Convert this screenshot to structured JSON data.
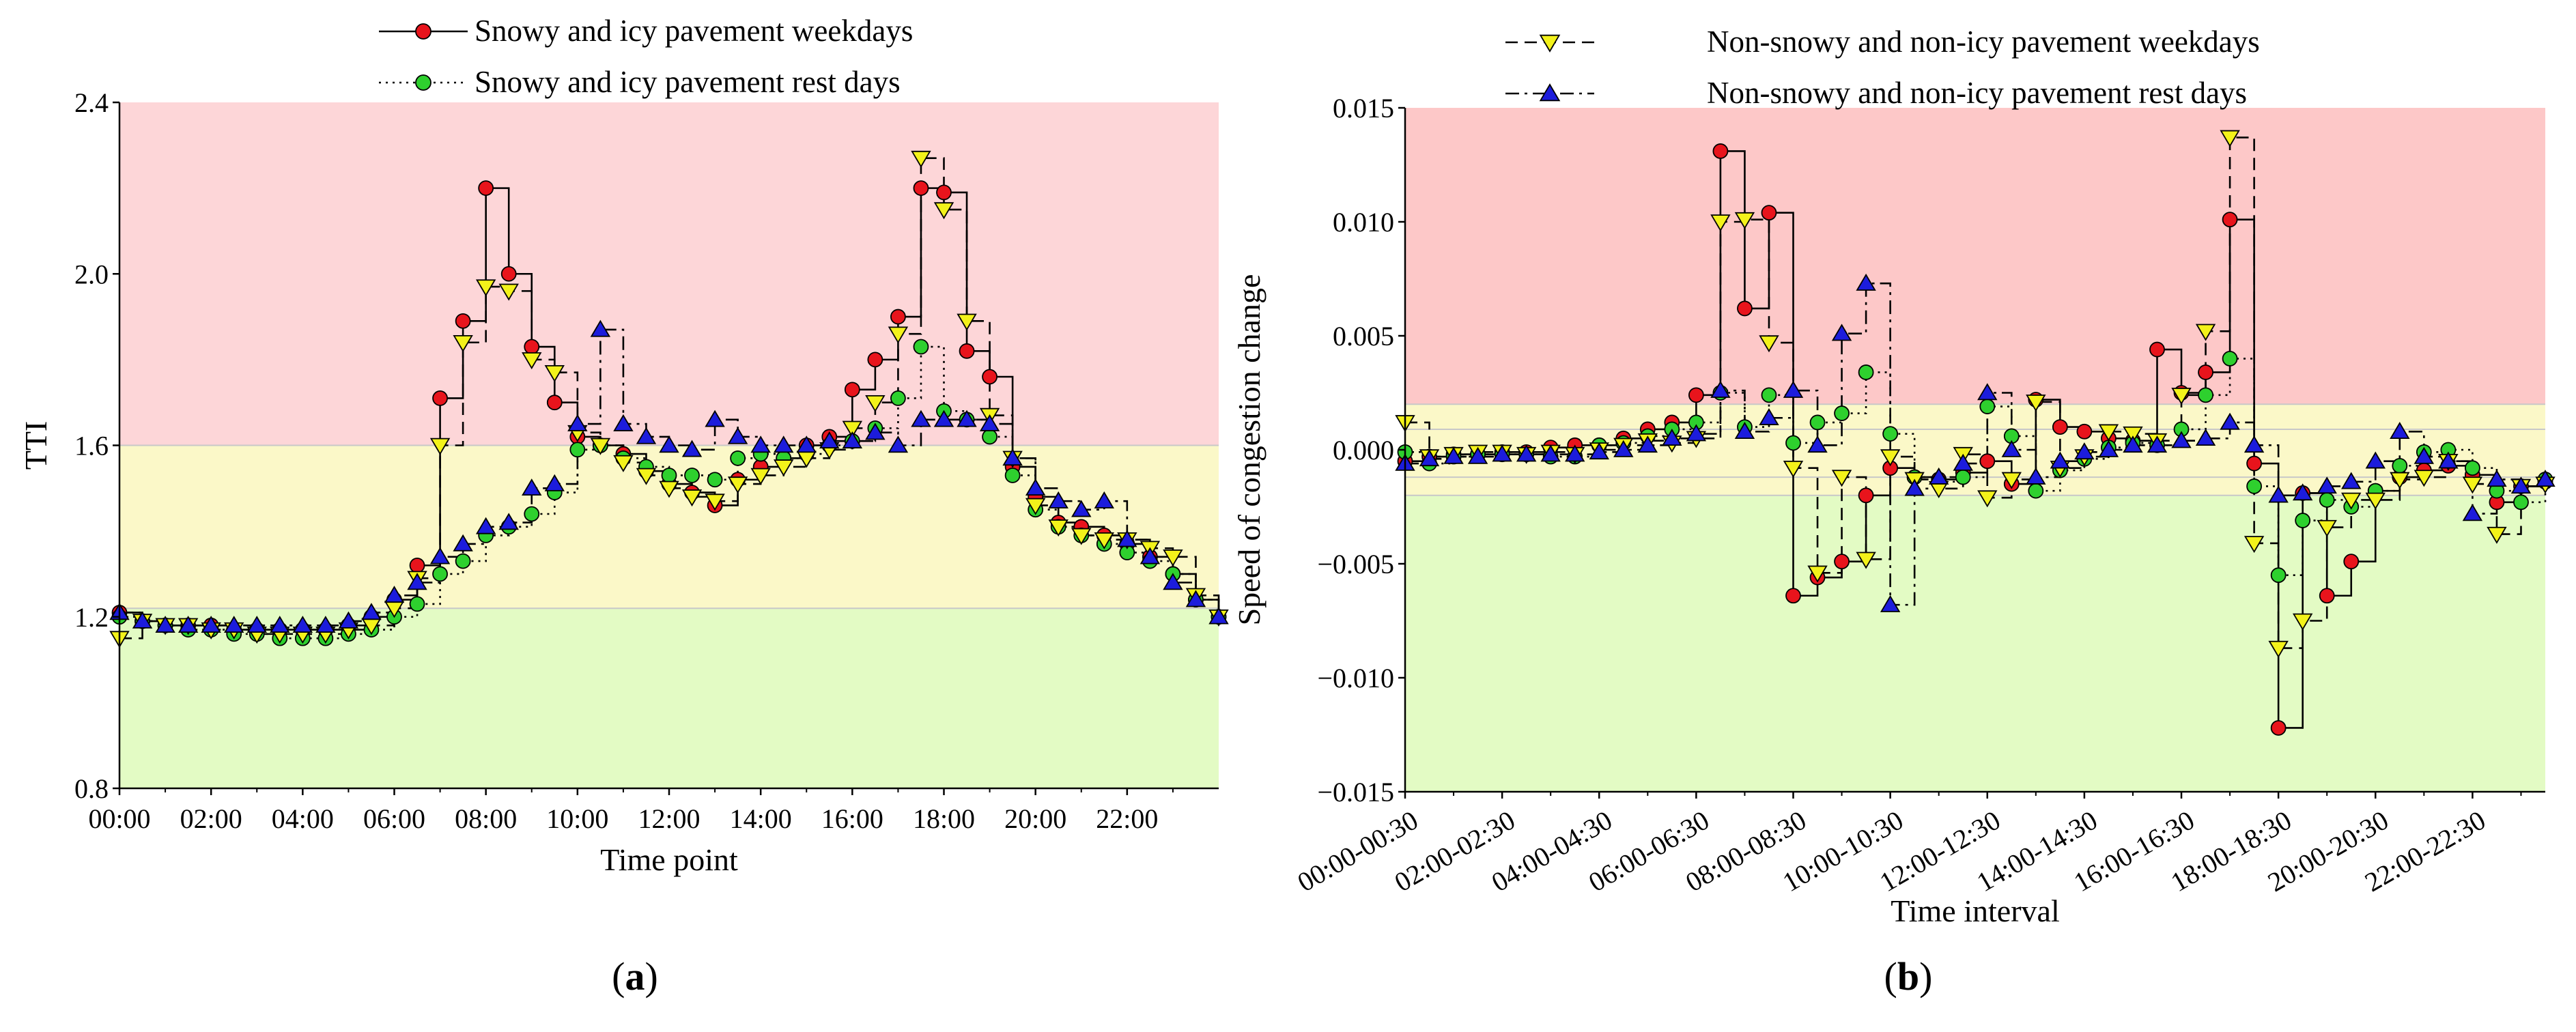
{
  "chart_data": [
    {
      "panel": "a",
      "type": "line",
      "step": true,
      "xlabel": "Time point",
      "ylabel": "TTI",
      "ylim": [
        0.8,
        2.4
      ],
      "yticks": [
        "0.8",
        "1.2",
        "1.6",
        "2.0",
        "2.4"
      ],
      "xtick_labels": [
        "00:00",
        "02:00",
        "04:00",
        "06:00",
        "08:00",
        "10:00",
        "12:00",
        "14:00",
        "16:00",
        "18:00",
        "20:00",
        "22:00"
      ],
      "bands": [
        {
          "from": 1.6,
          "to": 2.4,
          "color": "#fdd6d8"
        },
        {
          "from": 1.22,
          "to": 1.6,
          "color": "#fbf8c8"
        },
        {
          "from": 0.8,
          "to": 1.22,
          "color": "#e3fbc4"
        }
      ],
      "legend": [
        {
          "name": "Snowy and icy pavement weekdays",
          "color": "#e8141c",
          "style": "solid",
          "marker": "circle"
        },
        {
          "name": "Snowy and icy pavement rest days",
          "color": "#2ed02e",
          "style": "dotted",
          "marker": "circle"
        }
      ],
      "series": [
        {
          "name": "Snowy and icy pavement weekdays",
          "color": "#e8141c",
          "style": "solid",
          "marker": "circle",
          "values": [
            1.21,
            1.19,
            1.18,
            1.18,
            1.18,
            1.17,
            1.17,
            1.17,
            1.17,
            1.17,
            1.18,
            1.2,
            1.24,
            1.32,
            1.71,
            1.89,
            2.2,
            2.0,
            1.83,
            1.7,
            1.62,
            1.6,
            1.58,
            1.54,
            1.51,
            1.49,
            1.46,
            1.52,
            1.55,
            1.57,
            1.6,
            1.62,
            1.73,
            1.8,
            1.9,
            2.2,
            2.19,
            1.82,
            1.76,
            1.55,
            1.48,
            1.42,
            1.41,
            1.39,
            1.37,
            1.34,
            1.3,
            1.24,
            1.2
          ]
        },
        {
          "name": "Snowy and icy pavement rest days",
          "color": "#2ed02e",
          "style": "dotted",
          "marker": "circle",
          "values": [
            1.2,
            1.19,
            1.18,
            1.17,
            1.17,
            1.16,
            1.16,
            1.15,
            1.15,
            1.15,
            1.16,
            1.17,
            1.2,
            1.23,
            1.3,
            1.33,
            1.39,
            1.41,
            1.44,
            1.49,
            1.59,
            1.6,
            1.57,
            1.55,
            1.53,
            1.53,
            1.52,
            1.57,
            1.58,
            1.57,
            1.58,
            1.6,
            1.61,
            1.64,
            1.71,
            1.83,
            1.68,
            1.66,
            1.62,
            1.53,
            1.45,
            1.41,
            1.39,
            1.37,
            1.35,
            1.33,
            1.3,
            1.24,
            1.2
          ]
        },
        {
          "name": "Non-snowy and non-icy pavement weekdays",
          "color": "#f3f21a",
          "style": "dashed",
          "marker": "triangle-down",
          "values": [
            1.15,
            1.19,
            1.18,
            1.18,
            1.17,
            1.17,
            1.16,
            1.16,
            1.16,
            1.16,
            1.17,
            1.18,
            1.22,
            1.29,
            1.6,
            1.84,
            1.97,
            1.96,
            1.8,
            1.77,
            1.63,
            1.6,
            1.56,
            1.53,
            1.5,
            1.48,
            1.47,
            1.51,
            1.53,
            1.55,
            1.57,
            1.59,
            1.64,
            1.7,
            1.86,
            2.27,
            2.15,
            1.89,
            1.67,
            1.57,
            1.46,
            1.41,
            1.39,
            1.38,
            1.38,
            1.36,
            1.34,
            1.25,
            1.2
          ]
        },
        {
          "name": "Non-snowy and non-icy pavement rest days",
          "color": "#1c1cdc",
          "style": "dashdot",
          "marker": "triangle-up",
          "values": [
            1.21,
            1.19,
            1.18,
            1.18,
            1.18,
            1.18,
            1.18,
            1.18,
            1.18,
            1.18,
            1.19,
            1.21,
            1.25,
            1.28,
            1.34,
            1.37,
            1.41,
            1.42,
            1.5,
            1.51,
            1.65,
            1.87,
            1.65,
            1.62,
            1.6,
            1.59,
            1.66,
            1.62,
            1.6,
            1.6,
            1.6,
            1.61,
            1.61,
            1.63,
            1.6,
            1.66,
            1.66,
            1.66,
            1.65,
            1.57,
            1.5,
            1.47,
            1.45,
            1.47,
            1.38,
            1.34,
            1.28,
            1.24,
            1.2
          ]
        }
      ]
    },
    {
      "panel": "b",
      "type": "line",
      "step": true,
      "xlabel": "Time interval",
      "ylabel": "Speed of congestion change",
      "ylim": [
        -0.015,
        0.015
      ],
      "yticks": [
        "−0.015",
        "−0.010",
        "−0.005",
        "0.000",
        "0.005",
        "0.010",
        "0.015"
      ],
      "xtick_labels": [
        "00:00-00:30",
        "02:00-02:30",
        "04:00-04:30",
        "06:00-06:30",
        "08:00-08:30",
        "10:00-10:30",
        "12:00-12:30",
        "14:00-14:30",
        "16:00-16:30",
        "18:00-18:30",
        "20:00-20:30",
        "22:00-22:30"
      ],
      "bands": [
        {
          "from": 0.002,
          "to": 0.015,
          "color": "#fdc8c8"
        },
        {
          "from": -0.002,
          "to": 0.002,
          "color": "#fbf8c8"
        },
        {
          "from": -0.015,
          "to": -0.002,
          "color": "#e3fbc4"
        }
      ],
      "guide_lines": [
        0.0009,
        -0.0012
      ],
      "legend": [
        {
          "name": "Non-snowy and non-icy pavement weekdays",
          "color": "#f3f21a",
          "style": "dashed",
          "marker": "triangle-down"
        },
        {
          "name": "Non-snowy and non-icy pavement rest days",
          "color": "#1c1cdc",
          "style": "dashdot",
          "marker": "triangle-up"
        }
      ],
      "series": [
        {
          "name": "Snowy and icy pavement weekdays",
          "color": "#e8141c",
          "style": "solid",
          "marker": "circle",
          "values": [
            -0.0005,
            -0.0003,
            -0.0002,
            -0.0002,
            -0.0001,
            -0.0001,
            0.0001,
            0.0002,
            0.0002,
            0.0005,
            0.0009,
            0.0012,
            0.0024,
            0.0131,
            0.0062,
            0.0104,
            -0.0064,
            -0.0056,
            -0.0049,
            -0.002,
            -0.0008,
            -0.0012,
            -0.0013,
            -0.001,
            -0.0005,
            -0.0015,
            0.0022,
            0.001,
            0.0008,
            0.0005,
            0.0004,
            0.0044,
            0.0025,
            0.0034,
            0.0101,
            -0.0006,
            -0.0122,
            -0.0019,
            -0.0064,
            -0.0049,
            -0.0018,
            -0.0012,
            -0.0009,
            -0.0007,
            -0.0011,
            -0.0023,
            -0.0016,
            -0.0014
          ]
        },
        {
          "name": "Snowy and icy pavement rest days",
          "color": "#2ed02e",
          "style": "dotted",
          "marker": "circle",
          "values": [
            -0.0001,
            -0.0006,
            -0.0003,
            -0.0002,
            -0.0002,
            -0.0002,
            -0.0003,
            -0.0003,
            0.0002,
            0.0003,
            0.0006,
            0.0009,
            0.0012,
            0.0025,
            0.001,
            0.0024,
            0.0003,
            0.0012,
            0.0016,
            0.0034,
            0.0007,
            -0.0012,
            -0.0014,
            -0.0012,
            0.0019,
            0.0006,
            -0.0018,
            -0.0009,
            -0.0004,
            0.0001,
            0.0003,
            0.0002,
            0.0009,
            0.0024,
            0.004,
            -0.0016,
            -0.0055,
            -0.0031,
            -0.0022,
            -0.0025,
            -0.0018,
            -0.0007,
            -0.0001,
            0.0,
            -0.0008,
            -0.0018,
            -0.0023,
            -0.0013
          ]
        },
        {
          "name": "Non-snowy and non-icy pavement weekdays",
          "color": "#f3f21a",
          "style": "dashed",
          "marker": "triangle-down",
          "values": [
            0.0012,
            -0.0003,
            -0.0002,
            -0.0001,
            -0.0001,
            -0.0002,
            -0.0001,
            -0.0002,
            0.0,
            0.0002,
            0.0004,
            0.0003,
            0.0005,
            0.01,
            0.0101,
            0.0047,
            -0.0008,
            -0.0054,
            -0.0012,
            -0.0048,
            -0.0003,
            -0.0013,
            -0.0017,
            -0.0002,
            -0.0021,
            -0.0013,
            0.0021,
            -0.0008,
            -0.0003,
            0.0008,
            0.0007,
            0.0004,
            0.0024,
            0.0052,
            0.0137,
            -0.0041,
            -0.0087,
            -0.0075,
            -0.0034,
            -0.0022,
            -0.0022,
            -0.0013,
            -0.0012,
            -0.0005,
            -0.0015,
            -0.0037,
            -0.0016,
            -0.0015
          ]
        },
        {
          "name": "Non-snowy and non-icy pavement rest days",
          "color": "#1c1cdc",
          "style": "dashdot",
          "marker": "triangle-up",
          "values": [
            -0.0006,
            -0.0004,
            -0.0003,
            -0.0003,
            -0.0002,
            -0.0002,
            -0.0002,
            -0.0002,
            -0.0001,
            0.0,
            0.0002,
            0.0005,
            0.0007,
            0.0026,
            0.0008,
            0.0014,
            0.0026,
            0.0002,
            0.0051,
            0.0073,
            -0.0068,
            -0.0017,
            -0.0012,
            -0.0006,
            0.0025,
            0.0,
            -0.0012,
            -0.0005,
            -0.0001,
            0.0,
            0.0002,
            0.0002,
            0.0004,
            0.0005,
            0.0012,
            0.0002,
            -0.002,
            -0.0019,
            -0.0016,
            -0.0014,
            -0.0005,
            0.0008,
            -0.0003,
            -0.0005,
            -0.0028,
            -0.0013,
            -0.0016,
            -0.0013
          ]
        }
      ]
    }
  ],
  "panel_labels": [
    {
      "open": "(",
      "letter": "a",
      "close": ")"
    },
    {
      "open": "(",
      "letter": "b",
      "close": ")"
    }
  ]
}
